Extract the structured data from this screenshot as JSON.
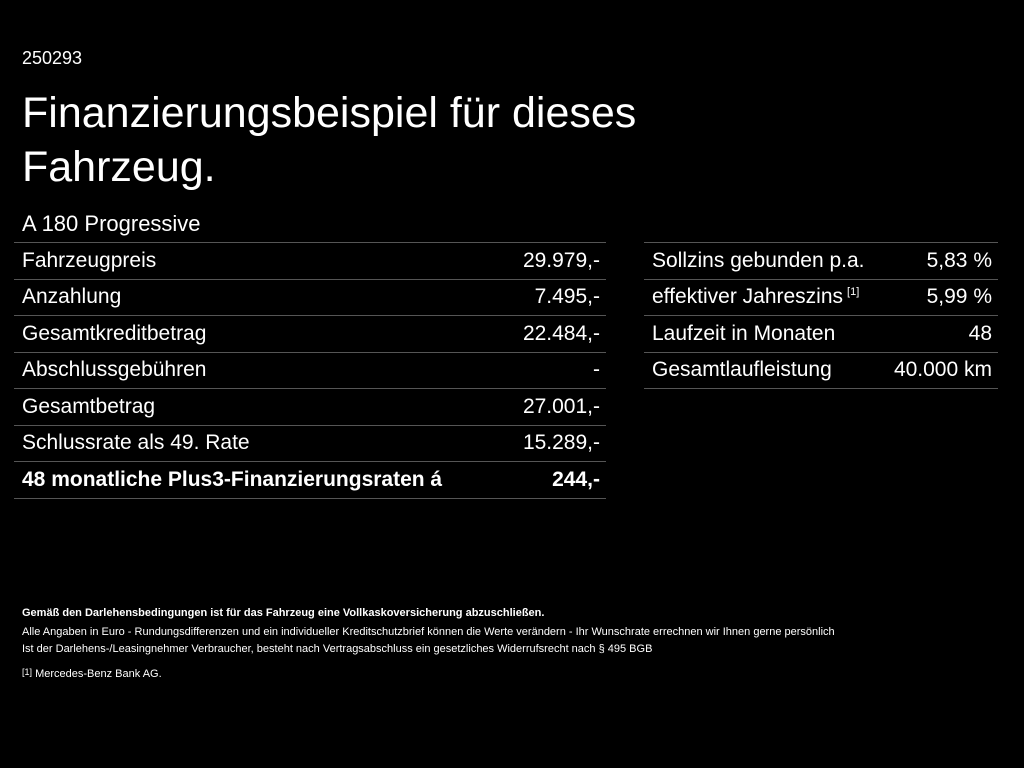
{
  "header": {
    "code": "250293",
    "title": "Finanzierungsbeispiel für dieses Fahrzeug.",
    "model": "A 180 Progressive"
  },
  "left_table": {
    "rows": [
      [
        "Fahrzeugpreis",
        "29.979,-"
      ],
      [
        "Anzahlung",
        "7.495,-"
      ],
      [
        "Gesamtkreditbetrag",
        "22.484,-"
      ],
      [
        "Abschlussgebühren",
        "-"
      ],
      [
        "Gesamtbetrag",
        "27.001,-"
      ],
      [
        "Schlussrate als 49. Rate",
        "15.289,-"
      ]
    ],
    "total": [
      "48 monatliche Plus3-Finanzierungsraten á",
      "244,-"
    ]
  },
  "right_table": {
    "rows": [
      {
        "label": "Sollzins gebunden p.a.",
        "value": "5,83 %"
      },
      {
        "label": "effektiver Jahreszins",
        "note": "[1]",
        "value": "5,99 %"
      },
      {
        "label": "Laufzeit in Monaten",
        "value": "48"
      },
      {
        "label": "Gesamtlaufleistung",
        "value": "40.000 km"
      }
    ]
  },
  "footer": {
    "notice": "Gemäß den Darlehensbedingungen ist für das Fahrzeug eine Vollkaskoversicherung abzuschließen.",
    "lines": [
      "Alle Angaben in Euro - Rundungsdifferenzen und ein individueller Kreditschutzbrief können die Werte verändern - Ihr Wunschrate errechnen wir Ihnen gerne persönlich",
      "Ist der Darlehens-/Leasingnehmer Verbraucher, besteht nach Vertragsabschluss ein gesetzliches Widerrufsrecht nach § 495 BGB"
    ],
    "footnote": {
      "marker": "[1]",
      "text": "Mercedes-Benz Bank AG."
    }
  }
}
